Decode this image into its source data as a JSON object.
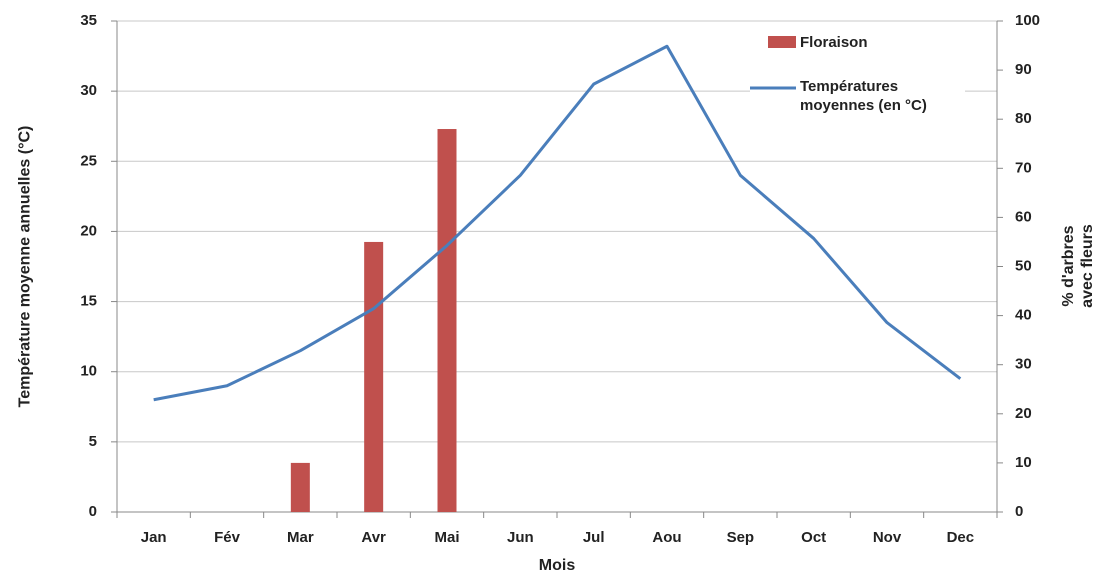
{
  "chart_data": {
    "type": "bar_line",
    "x_label": "Mois",
    "y_label": "Température moyenne annuelles (°C)",
    "y2_label": "% d'arbres avec fleurs",
    "categories": [
      "Jan",
      "Fév",
      "Mar",
      "Avr",
      "Mai",
      "Jun",
      "Jul",
      "Aou",
      "Sep",
      "Oct",
      "Nov",
      "Dec"
    ],
    "series": [
      {
        "name": "Floraison",
        "type": "bar",
        "axis": "y2",
        "color": "#c0504d",
        "values": [
          0,
          0,
          10,
          55,
          78,
          0,
          0,
          0,
          0,
          0,
          0,
          0
        ]
      },
      {
        "name": "Températures moyennes (en °C)",
        "type": "line",
        "axis": "y",
        "color": "#4a7ebb",
        "values": [
          8,
          9,
          11.5,
          14.5,
          19,
          24,
          30.5,
          33.2,
          24,
          19.5,
          13.5,
          9.5
        ]
      }
    ],
    "ylim": [
      0,
      35
    ],
    "yticks": [
      0,
      5,
      10,
      15,
      20,
      25,
      30,
      35
    ],
    "y2lim": [
      0,
      100
    ],
    "y2ticks": [
      0,
      10,
      20,
      30,
      40,
      50,
      60,
      70,
      80,
      90,
      100
    ],
    "grid": true,
    "legend": "top-right"
  }
}
